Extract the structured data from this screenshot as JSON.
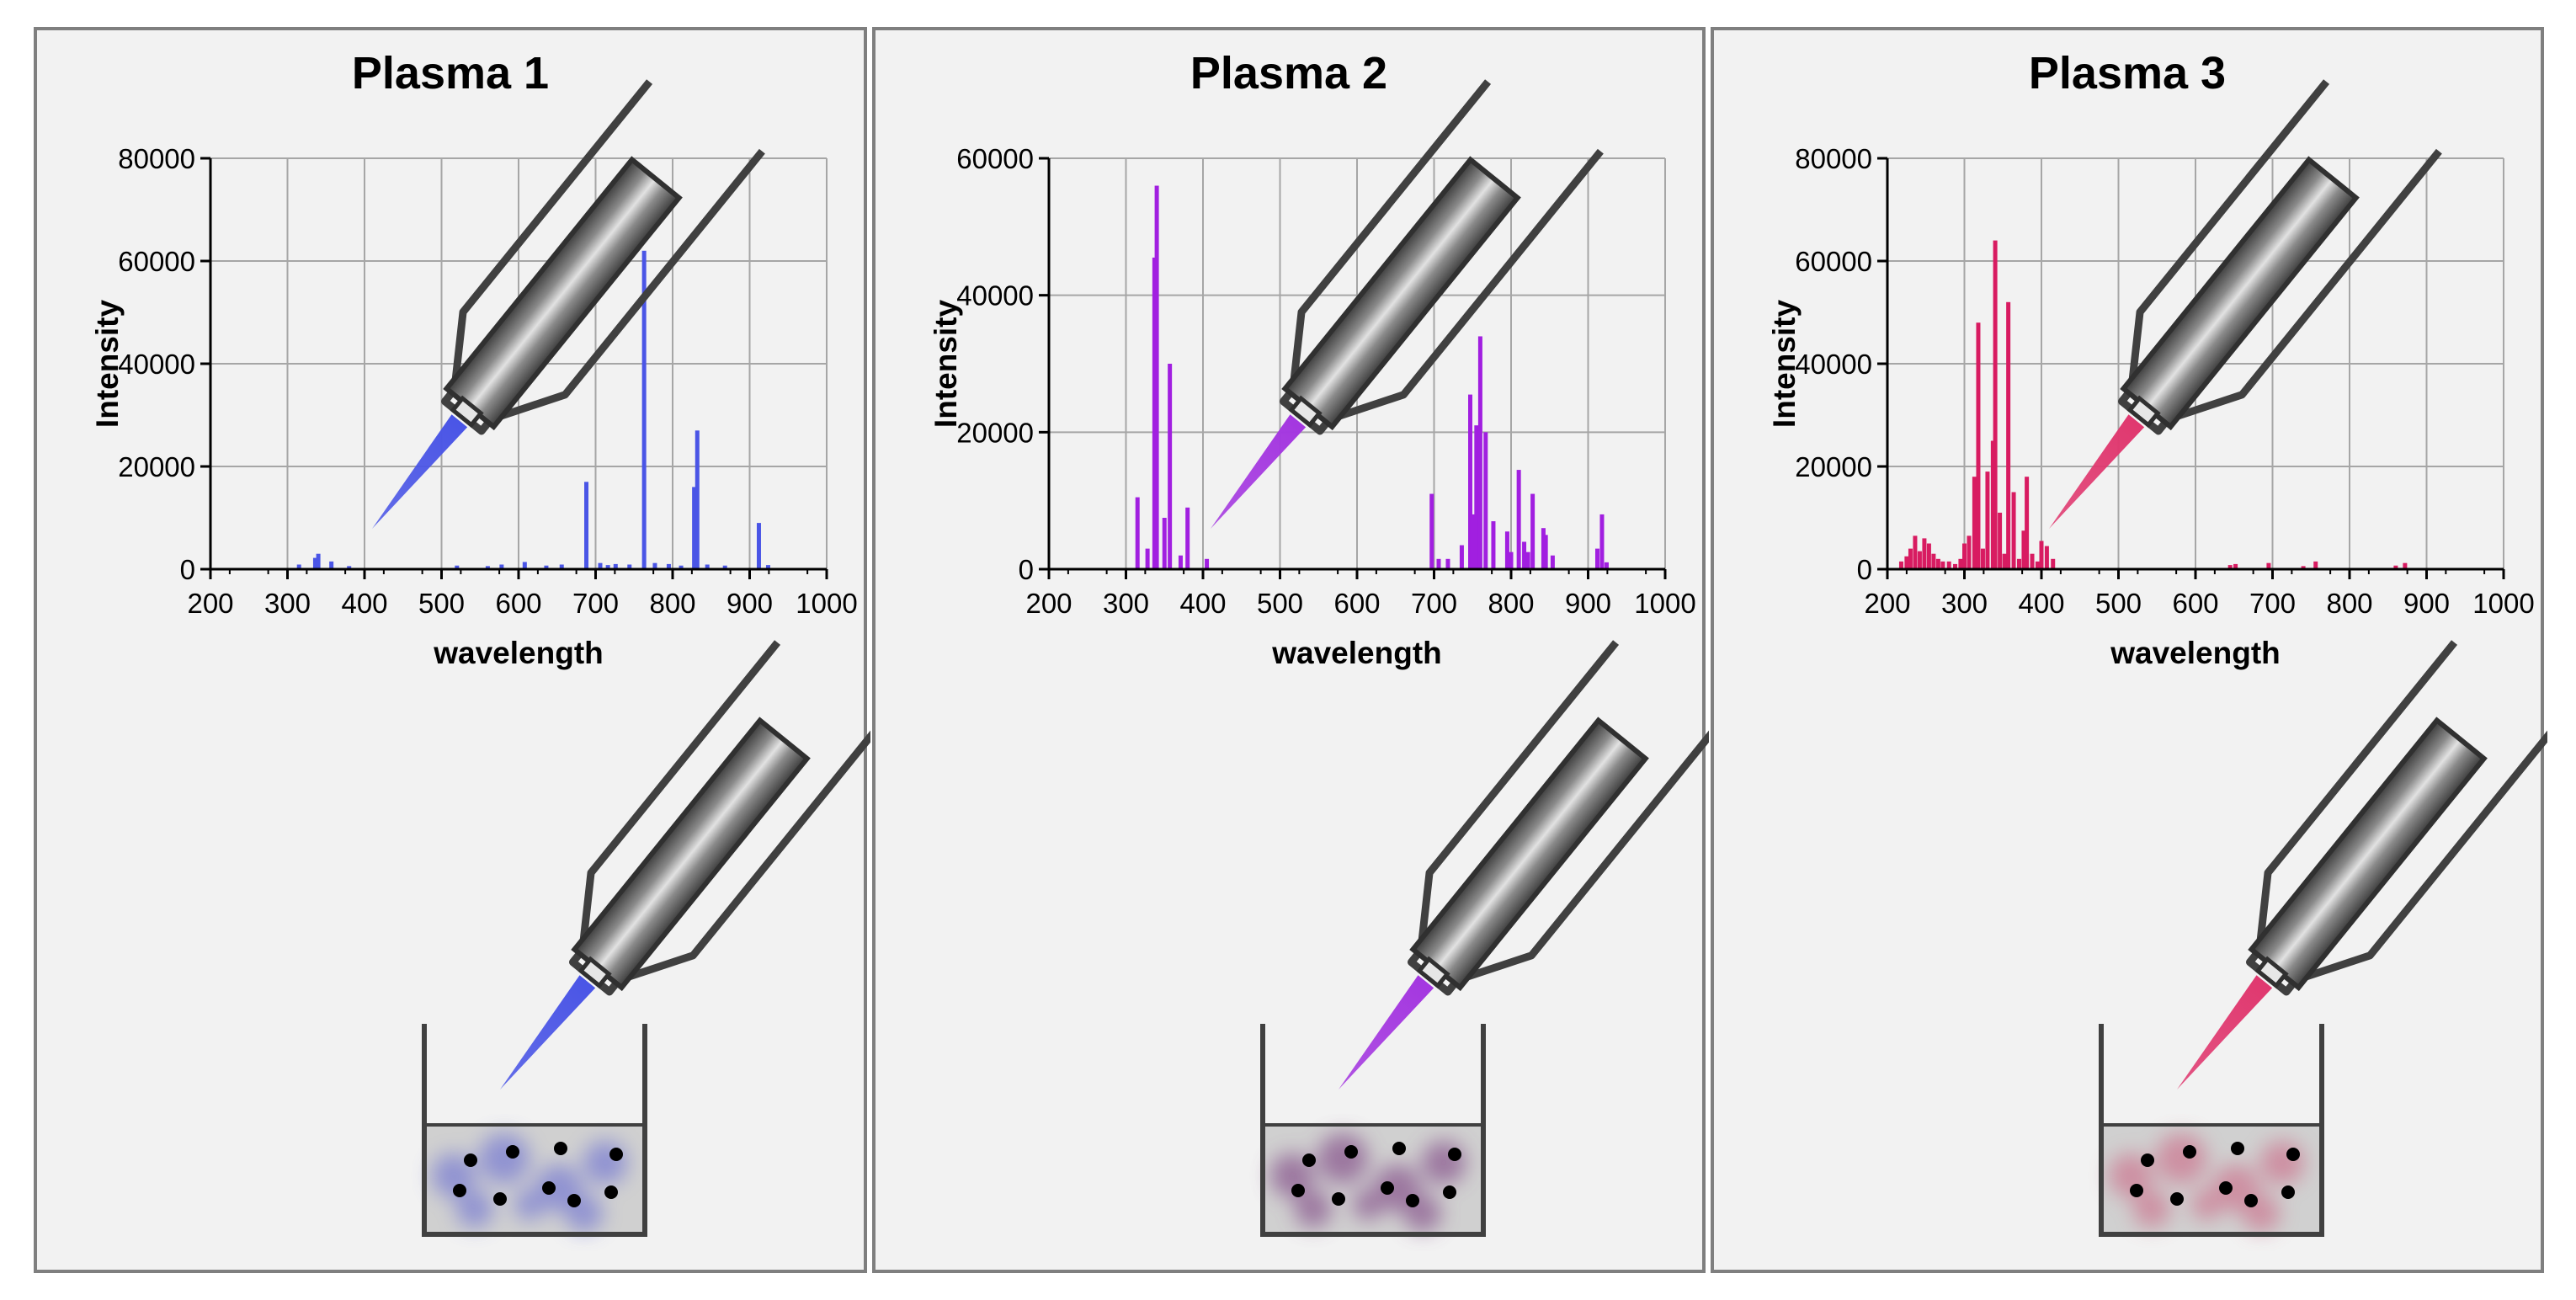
{
  "panels": [
    {
      "title": "Plasma 1",
      "plasma_color": "#4a55e6",
      "solution_tint": "#7c7fd2",
      "chart_data": {
        "type": "bar",
        "title": "Plasma 1",
        "xlabel": "wavelength",
        "ylabel": "Intensity",
        "xlim": [
          200,
          1000
        ],
        "ylim": [
          0,
          80000
        ],
        "xticks": [
          200,
          300,
          400,
          500,
          600,
          700,
          800,
          900,
          1000
        ],
        "yticks": [
          0,
          20000,
          40000,
          60000,
          80000
        ],
        "grid": true,
        "color": "#4a55e6",
        "x": [
          315,
          336,
          340,
          357,
          380,
          520,
          560,
          578,
          608,
          636,
          656,
          688,
          706,
          716,
          726,
          744,
          763,
          777,
          795,
          811,
          828,
          832,
          845,
          868,
          912,
          924
        ],
        "values": [
          900,
          2200,
          3000,
          1500,
          600,
          700,
          600,
          900,
          1400,
          700,
          900,
          17000,
          1200,
          800,
          1000,
          900,
          62000,
          1200,
          1000,
          700,
          16000,
          27000,
          900,
          700,
          9000,
          800
        ]
      }
    },
    {
      "title": "Plasma 2",
      "plasma_color": "#a437e0",
      "solution_tint": "#8a5a8f",
      "chart_data": {
        "type": "bar",
        "title": "Plasma 2",
        "xlabel": "wavelength",
        "ylabel": "Intensity",
        "xlim": [
          200,
          1000
        ],
        "ylim": [
          0,
          60000
        ],
        "xticks": [
          200,
          300,
          400,
          500,
          600,
          700,
          800,
          900,
          1000
        ],
        "yticks": [
          0,
          20000,
          40000,
          60000
        ],
        "grid": true,
        "color": "#a11fe0",
        "x": [
          315,
          328,
          337,
          340,
          350,
          357,
          371,
          380,
          405,
          697,
          706,
          718,
          736,
          747,
          750,
          755,
          760,
          767,
          777,
          795,
          800,
          810,
          817,
          822,
          828,
          842,
          845,
          854,
          912,
          918,
          924
        ],
        "values": [
          10500,
          3000,
          45500,
          56000,
          7500,
          30000,
          2000,
          9000,
          1500,
          11000,
          1500,
          1500,
          3500,
          25500,
          8000,
          21000,
          34000,
          20000,
          7000,
          5500,
          2500,
          14500,
          4000,
          2500,
          11000,
          6000,
          5000,
          2000,
          3000,
          8000,
          1000
        ]
      }
    },
    {
      "title": "Plasma 3",
      "plasma_color": "#e0386f",
      "solution_tint": "#cc7a93",
      "chart_data": {
        "type": "bar",
        "title": "Plasma 3",
        "xlabel": "wavelength",
        "ylabel": "Intensity",
        "xlim": [
          200,
          1000
        ],
        "ylim": [
          0,
          80000
        ],
        "xticks": [
          200,
          300,
          400,
          500,
          600,
          700,
          800,
          900,
          1000
        ],
        "yticks": [
          0,
          20000,
          40000,
          60000,
          80000
        ],
        "grid": true,
        "color": "#d81b61",
        "x": [
          218,
          225,
          230,
          236,
          242,
          248,
          254,
          260,
          266,
          272,
          280,
          288,
          295,
          300,
          306,
          313,
          318,
          324,
          330,
          337,
          340,
          346,
          352,
          357,
          364,
          371,
          377,
          381,
          388,
          395,
          400,
          407,
          415,
          645,
          652,
          695,
          740,
          756,
          860,
          872
        ],
        "values": [
          1500,
          2500,
          4000,
          6500,
          3500,
          6000,
          5000,
          3000,
          2000,
          1500,
          1500,
          1000,
          2000,
          5000,
          6500,
          18000,
          48000,
          4000,
          19000,
          25000,
          64000,
          11000,
          3000,
          52000,
          15000,
          2000,
          7500,
          18000,
          3000,
          1500,
          5500,
          4500,
          2000,
          800,
          1000,
          1200,
          600,
          1500,
          700,
          1200
        ]
      }
    }
  ]
}
